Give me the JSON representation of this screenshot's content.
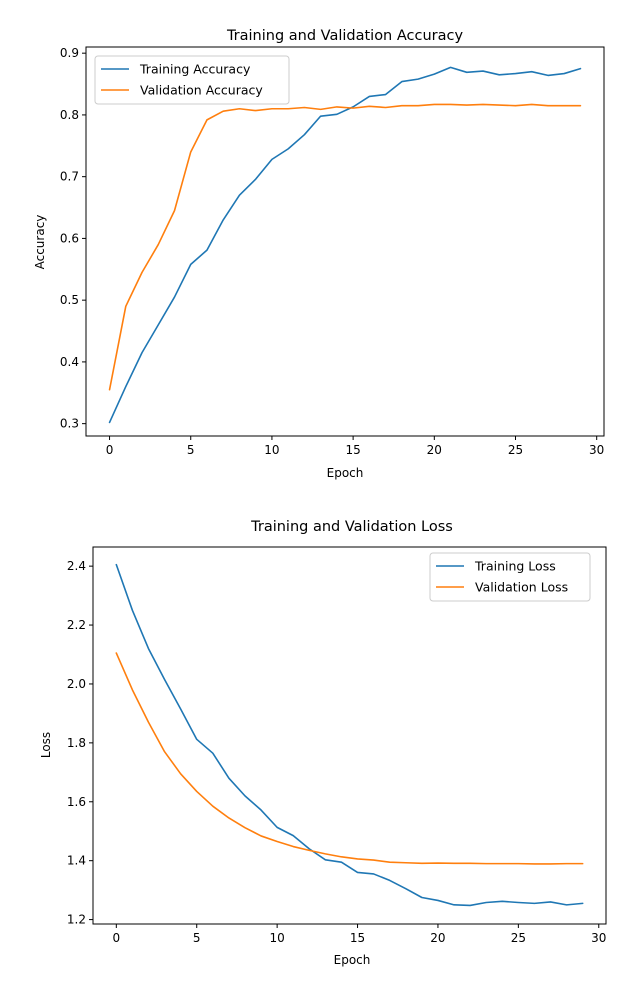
{
  "colors": {
    "training": "#1f77b4",
    "validation": "#ff7f0e"
  },
  "chart_data": [
    {
      "type": "line",
      "title": "Training and Validation Accuracy",
      "xlabel": "Epoch",
      "ylabel": "Accuracy",
      "xlim": [
        -1.45,
        30.45
      ],
      "ylim": [
        0.28,
        0.91
      ],
      "xticks": [
        0,
        5,
        10,
        15,
        20,
        25,
        30
      ],
      "yticks": [
        0.3,
        0.4,
        0.5,
        0.6,
        0.7,
        0.8,
        0.9
      ],
      "ytick_labels": [
        "0.3",
        "0.4",
        "0.5",
        "0.6",
        "0.7",
        "0.8",
        "0.9"
      ],
      "grid": false,
      "legend_position": "top-left",
      "x": [
        0,
        1,
        2,
        3,
        4,
        5,
        6,
        7,
        8,
        9,
        10,
        11,
        12,
        13,
        14,
        15,
        16,
        17,
        18,
        19,
        20,
        21,
        22,
        23,
        24,
        25,
        26,
        27,
        28,
        29
      ],
      "series": [
        {
          "name": "Training Accuracy",
          "color_key": "training",
          "values": [
            0.302,
            0.36,
            0.415,
            0.46,
            0.505,
            0.558,
            0.581,
            0.63,
            0.67,
            0.696,
            0.728,
            0.745,
            0.768,
            0.798,
            0.801,
            0.813,
            0.83,
            0.833,
            0.854,
            0.858,
            0.866,
            0.877,
            0.869,
            0.871,
            0.865,
            0.867,
            0.87,
            0.864,
            0.867,
            0.875
          ]
        },
        {
          "name": "Validation Accuracy",
          "color_key": "validation",
          "values": [
            0.355,
            0.49,
            0.545,
            0.59,
            0.645,
            0.74,
            0.792,
            0.806,
            0.81,
            0.807,
            0.81,
            0.81,
            0.812,
            0.809,
            0.813,
            0.811,
            0.814,
            0.812,
            0.815,
            0.815,
            0.817,
            0.817,
            0.816,
            0.817,
            0.816,
            0.815,
            0.817,
            0.815,
            0.815,
            0.815
          ]
        }
      ]
    },
    {
      "type": "line",
      "title": "Training and Validation Loss",
      "xlabel": "Epoch",
      "ylabel": "Loss",
      "xlim": [
        -1.45,
        30.45
      ],
      "ylim": [
        1.185,
        2.465
      ],
      "xticks": [
        0,
        5,
        10,
        15,
        20,
        25,
        30
      ],
      "yticks": [
        1.2,
        1.4,
        1.6,
        1.8,
        2.0,
        2.2,
        2.4
      ],
      "ytick_labels": [
        "1.2",
        "1.4",
        "1.6",
        "1.8",
        "2.0",
        "2.2",
        "2.4"
      ],
      "grid": false,
      "legend_position": "top-right",
      "x": [
        0,
        1,
        2,
        3,
        4,
        5,
        6,
        7,
        8,
        9,
        10,
        11,
        12,
        13,
        14,
        15,
        16,
        17,
        18,
        19,
        20,
        21,
        22,
        23,
        24,
        25,
        26,
        27,
        28,
        29
      ],
      "series": [
        {
          "name": "Training Loss",
          "color_key": "training",
          "values": [
            2.405,
            2.25,
            2.12,
            2.015,
            1.915,
            1.812,
            1.765,
            1.68,
            1.62,
            1.572,
            1.513,
            1.485,
            1.44,
            1.403,
            1.395,
            1.36,
            1.355,
            1.333,
            1.305,
            1.275,
            1.265,
            1.25,
            1.248,
            1.258,
            1.262,
            1.258,
            1.255,
            1.26,
            1.25,
            1.255
          ]
        },
        {
          "name": "Validation Loss",
          "color_key": "validation",
          "values": [
            2.105,
            1.98,
            1.87,
            1.77,
            1.695,
            1.635,
            1.585,
            1.545,
            1.512,
            1.484,
            1.465,
            1.448,
            1.435,
            1.423,
            1.413,
            1.406,
            1.402,
            1.395,
            1.393,
            1.391,
            1.392,
            1.391,
            1.391,
            1.39,
            1.39,
            1.39,
            1.389,
            1.389,
            1.39,
            1.39
          ]
        }
      ]
    }
  ]
}
